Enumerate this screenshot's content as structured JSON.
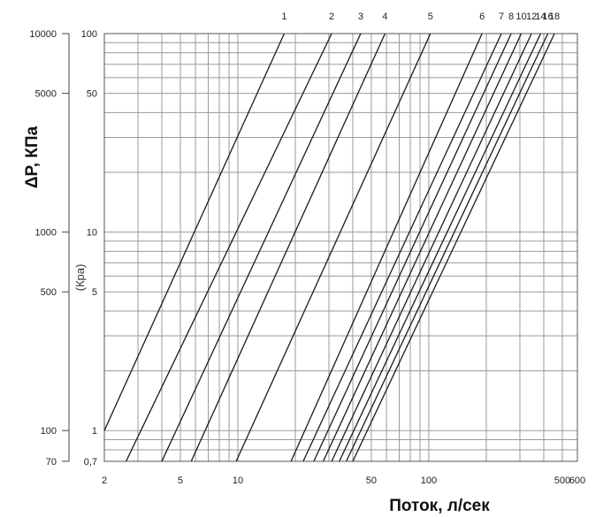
{
  "chart_data": {
    "type": "line",
    "title": "",
    "xlabel": "Поток, л/сек",
    "ylabel": "ΔP, КПа",
    "ylabel_inner_unit": "(Кра)",
    "x_scale": "log",
    "y_scale": "log",
    "xlim": [
      2,
      600
    ],
    "ylim_outer": [
      70,
      10000
    ],
    "ylim_inner": [
      0.7,
      100
    ],
    "grid": true,
    "x_ticks": [
      {
        "value": 2,
        "label": "2"
      },
      {
        "value": 5,
        "label": "5"
      },
      {
        "value": 10,
        "label": "10"
      },
      {
        "value": 50,
        "label": "50"
      },
      {
        "value": 100,
        "label": "100"
      },
      {
        "value": 500,
        "label": "500"
      },
      {
        "value": 600,
        "label": "600"
      }
    ],
    "y_ticks_outer": [
      {
        "value": 10000,
        "label": "10000"
      },
      {
        "value": 5000,
        "label": "5000"
      },
      {
        "value": 1000,
        "label": "1000"
      },
      {
        "value": 500,
        "label": "500"
      },
      {
        "value": 100,
        "label": "100"
      },
      {
        "value": 70,
        "label": "70"
      }
    ],
    "y_ticks_inner": [
      {
        "value": 100,
        "label": "100"
      },
      {
        "value": 50,
        "label": "50"
      },
      {
        "value": 10,
        "label": "10"
      },
      {
        "value": 5,
        "label": "5"
      },
      {
        "value": 1,
        "label": "1"
      },
      {
        "value": 0.7,
        "label": "0,7"
      }
    ],
    "series": [
      {
        "label": "1",
        "points": [
          [
            2,
            100
          ],
          [
            17.5,
            10000
          ]
        ]
      },
      {
        "label": "2",
        "points": [
          [
            2.6,
            70
          ],
          [
            31,
            10000
          ]
        ]
      },
      {
        "label": "3",
        "points": [
          [
            4,
            70
          ],
          [
            44,
            10000
          ]
        ]
      },
      {
        "label": "4",
        "points": [
          [
            5.7,
            70
          ],
          [
            59,
            10000
          ]
        ]
      },
      {
        "label": "5",
        "points": [
          [
            9.8,
            70
          ],
          [
            102,
            10000
          ]
        ]
      },
      {
        "label": "6",
        "points": [
          [
            19,
            70
          ],
          [
            190,
            10000
          ]
        ]
      },
      {
        "label": "7",
        "points": [
          [
            22,
            70
          ],
          [
            240,
            10000
          ]
        ]
      },
      {
        "label": "8",
        "points": [
          [
            25,
            70
          ],
          [
            270,
            10000
          ]
        ]
      },
      {
        "label": "10",
        "points": [
          [
            28,
            70
          ],
          [
            305,
            10000
          ]
        ]
      },
      {
        "label": "12",
        "points": [
          [
            31,
            70
          ],
          [
            345,
            10000
          ]
        ]
      },
      {
        "label": "14",
        "points": [
          [
            34,
            70
          ],
          [
            385,
            10000
          ]
        ]
      },
      {
        "label": "16",
        "points": [
          [
            37,
            70
          ],
          [
            420,
            10000
          ]
        ]
      },
      {
        "label": "18",
        "points": [
          [
            40,
            70
          ],
          [
            455,
            10000
          ]
        ]
      }
    ],
    "top_labels": [
      "1",
      "2",
      "3",
      "4",
      "5",
      "6",
      "7",
      "8",
      "10",
      "12",
      "14",
      "16",
      "18"
    ]
  }
}
